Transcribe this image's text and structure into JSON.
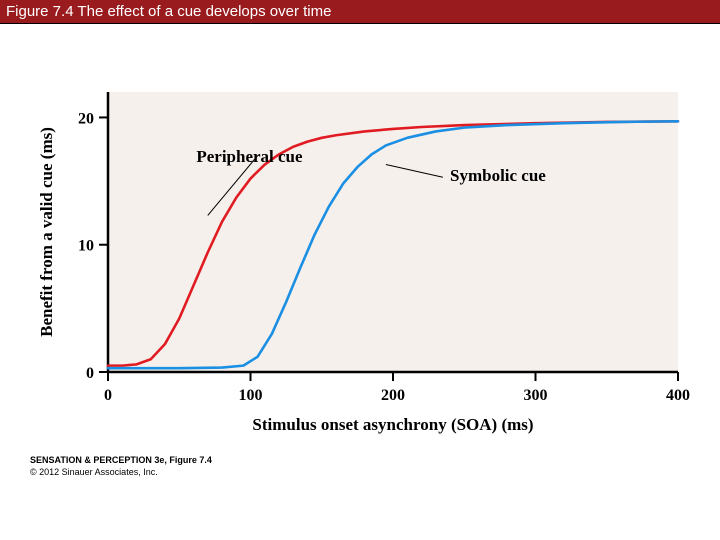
{
  "title_bar": "Figure 7.4  The effect of a cue develops over time",
  "chart": {
    "type": "line",
    "plot_bg": "#f6f0ec",
    "page_bg": "#ffffff",
    "axis_color": "#000000",
    "axis_stroke": 2.5,
    "xlabel": "Stimulus onset asynchrony (SOA) (ms)",
    "ylabel": "Benefit from a valid cue (ms)",
    "label_fontsize": 17,
    "label_fontweight": "bold",
    "tick_fontsize": 16,
    "xlim": [
      0,
      400
    ],
    "ylim": [
      0,
      22
    ],
    "xticks": [
      0,
      100,
      200,
      300,
      400
    ],
    "yticks": [
      0,
      10,
      20
    ],
    "series": [
      {
        "name": "Peripheral cue",
        "color": "#e11b22",
        "stroke": 2.6,
        "label_xy": [
          62,
          16.5
        ],
        "leader_from": [
          105,
          17
        ],
        "leader_to": [
          70,
          12.3
        ],
        "points": [
          [
            0,
            0.5
          ],
          [
            10,
            0.5
          ],
          [
            20,
            0.6
          ],
          [
            30,
            1.0
          ],
          [
            40,
            2.2
          ],
          [
            50,
            4.2
          ],
          [
            60,
            6.8
          ],
          [
            70,
            9.4
          ],
          [
            80,
            11.8
          ],
          [
            90,
            13.7
          ],
          [
            100,
            15.2
          ],
          [
            110,
            16.3
          ],
          [
            120,
            17.1
          ],
          [
            130,
            17.7
          ],
          [
            140,
            18.1
          ],
          [
            150,
            18.4
          ],
          [
            160,
            18.6
          ],
          [
            180,
            18.9
          ],
          [
            200,
            19.1
          ],
          [
            220,
            19.25
          ],
          [
            250,
            19.4
          ],
          [
            300,
            19.55
          ],
          [
            350,
            19.65
          ],
          [
            400,
            19.7
          ]
        ]
      },
      {
        "name": "Symbolic cue",
        "color": "#1a8fe3",
        "stroke": 2.6,
        "label_xy": [
          240,
          15
        ],
        "leader_from": [
          195,
          16.3
        ],
        "leader_to": [
          235,
          15.3
        ],
        "points": [
          [
            0,
            0.3
          ],
          [
            50,
            0.3
          ],
          [
            80,
            0.35
          ],
          [
            95,
            0.5
          ],
          [
            105,
            1.2
          ],
          [
            115,
            3.0
          ],
          [
            125,
            5.5
          ],
          [
            135,
            8.2
          ],
          [
            145,
            10.8
          ],
          [
            155,
            13.0
          ],
          [
            165,
            14.8
          ],
          [
            175,
            16.1
          ],
          [
            185,
            17.1
          ],
          [
            195,
            17.8
          ],
          [
            210,
            18.4
          ],
          [
            230,
            18.9
          ],
          [
            250,
            19.2
          ],
          [
            280,
            19.4
          ],
          [
            320,
            19.55
          ],
          [
            360,
            19.65
          ],
          [
            400,
            19.7
          ]
        ]
      }
    ],
    "inline_label_fontsize": 17,
    "inline_label_fontweight": "bold",
    "leader_color": "#000000",
    "leader_stroke": 1
  },
  "footer": {
    "source": "SENSATION & PERCEPTION 3e, Figure 7.4",
    "copyright": "© 2012 Sinauer Associates, Inc."
  }
}
